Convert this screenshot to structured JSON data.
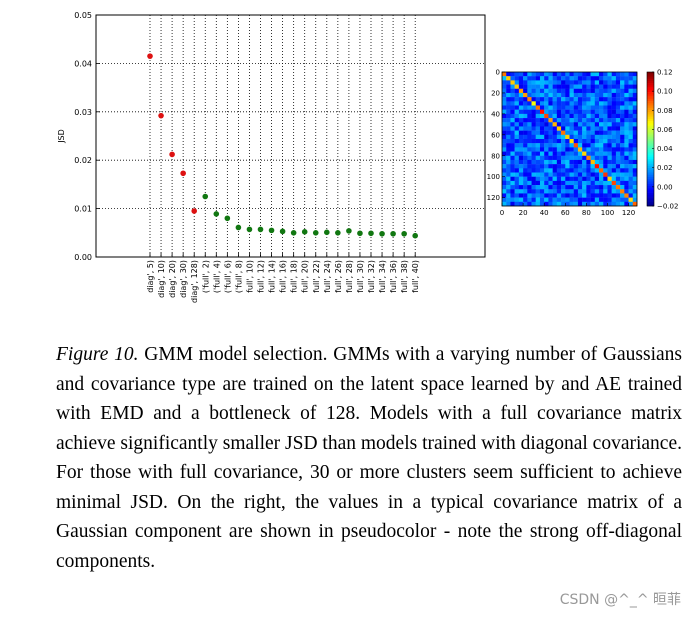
{
  "chart_data": [
    {
      "type": "scatter",
      "ylabel": "JSD",
      "ylim": [
        0,
        0.05
      ],
      "yticks": [
        "0.00",
        "0.01",
        "0.02",
        "0.03",
        "0.04",
        "0.05"
      ],
      "grid": true,
      "categories": [
        "diag', 5)",
        "diag', 10)",
        "diag', 20)",
        "diag', 30)",
        "diag', 128)",
        "('full', 2)",
        "('full', 4)",
        "('full', 6)",
        "('full', 8)",
        "full', 10)",
        "full', 12)",
        "full', 14)",
        "full', 16)",
        "full', 18)",
        "full', 20)",
        "full', 22)",
        "full', 24)",
        "full', 26)",
        "full', 28)",
        "full', 30)",
        "full', 32)",
        "full', 34)",
        "full', 36)",
        "full', 38)",
        "full', 40)"
      ],
      "series": [
        {
          "color": "#dd1111",
          "values": [
            0.0415,
            0.0292,
            0.0212,
            0.0173,
            0.0095,
            null,
            null,
            null,
            null,
            null,
            null,
            null,
            null,
            null,
            null,
            null,
            null,
            null,
            null,
            null,
            null,
            null,
            null,
            null,
            null
          ]
        },
        {
          "color": "#117711",
          "values": [
            null,
            null,
            null,
            null,
            null,
            0.0125,
            0.0089,
            0.008,
            0.0061,
            0.0057,
            0.0057,
            0.0055,
            0.0053,
            0.005,
            0.0052,
            0.005,
            0.0051,
            0.005,
            0.0054,
            0.0049,
            0.0049,
            0.0048,
            0.0048,
            0.0048,
            0.0044
          ]
        }
      ]
    },
    {
      "type": "heatmap",
      "xticks": [
        "0",
        "20",
        "40",
        "60",
        "80",
        "100",
        "120"
      ],
      "yticks": [
        "0",
        "20",
        "40",
        "60",
        "80",
        "100",
        "120"
      ],
      "xlim": [
        0,
        128
      ],
      "ylim": [
        0,
        128
      ],
      "colorbar": {
        "min": -0.02,
        "max": 0.12,
        "ticks": [
          "0.12",
          "0.10",
          "0.08",
          "0.06",
          "0.04",
          "0.02",
          "0.00",
          "−0.02"
        ]
      },
      "note_background_level": 0.01,
      "diagonal_level": 0.12
    }
  ],
  "caption": {
    "label": "Figure 10.",
    "text": " GMM model selection. GMMs with a varying number of Gaussians and covariance type are trained on the latent space learned by and AE trained with EMD and a bottleneck of 128. Models with a full covariance matrix achieve significantly smaller JSD than models trained with diagonal covariance. For those with full covariance, 30 or more clusters seem sufficient to achieve minimal JSD. On the right, the values in a typical covariance matrix of a Gaussian component are shown in pseudocolor - note the strong off-diagonal components."
  },
  "watermark": "CSDN @^_^ 晅菲"
}
